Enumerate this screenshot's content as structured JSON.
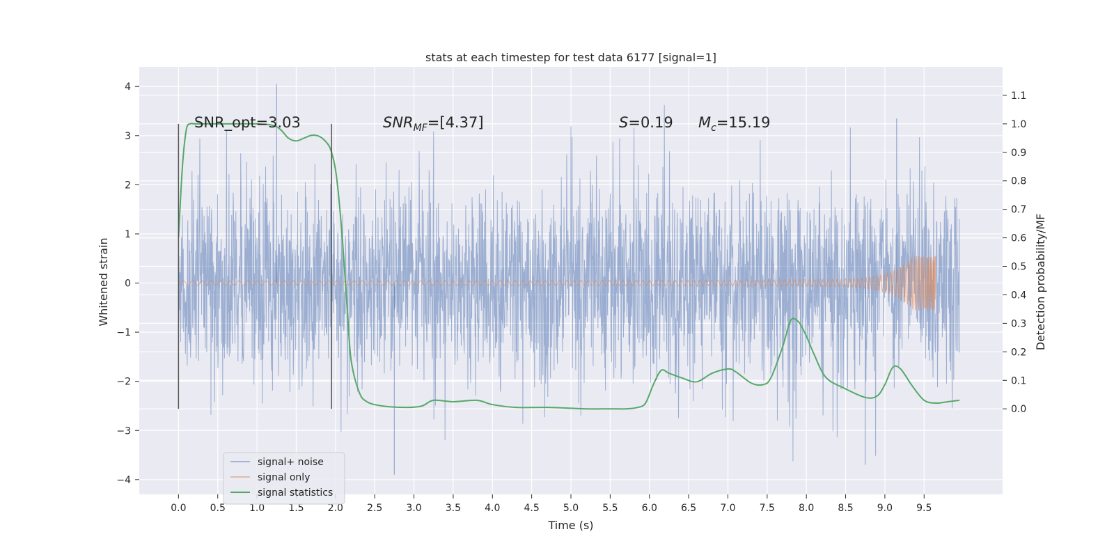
{
  "chart_data": {
    "type": "line",
    "title": "stats at each timestep for test data 6177 [signal=1]",
    "xlabel": "Time (s)",
    "ylabel": "Whitened strain",
    "ylabel_right": "Detection probability/MF",
    "xlim": [
      -0.5,
      10.5
    ],
    "ylim": [
      -4.3,
      4.4
    ],
    "ylim_right": [
      -0.3,
      1.2
    ],
    "x_ticks": [
      "0.0",
      "0.5",
      "1.0",
      "1.5",
      "2.0",
      "2.5",
      "3.0",
      "3.5",
      "4.0",
      "4.5",
      "5.0",
      "5.5",
      "6.0",
      "6.5",
      "7.0",
      "7.5",
      "8.0",
      "8.5",
      "9.0",
      "9.5"
    ],
    "y_ticks": [
      "4",
      "3",
      "2",
      "1",
      "0",
      "−1",
      "−2",
      "−3",
      "−4"
    ],
    "y_ticks_right": [
      "1.1",
      "1.0",
      "0.9",
      "0.8",
      "0.7",
      "0.6",
      "0.5",
      "0.4",
      "0.3",
      "0.2",
      "0.1",
      "0.0"
    ],
    "grid": true,
    "legend_position": "lower-left",
    "annotations": [
      {
        "key": "snr_opt",
        "text": "SNR_opt=3.03"
      },
      {
        "key": "snr_mf",
        "text": "SNR",
        "sub": "MF",
        "suffix": "=[4.37]"
      },
      {
        "key": "s",
        "text": "S",
        "suffix": "=0.19"
      },
      {
        "key": "mc",
        "text": "M",
        "sub": "c",
        "suffix": "=15.19"
      }
    ],
    "vertical_markers": [
      0.0,
      1.95
    ],
    "series": [
      {
        "name": "signal+ noise",
        "color": "#4c72b0",
        "x_range": [
          0.0,
          9.95
        ],
        "noise_sigma": 1.0,
        "peak_max": 4.05,
        "peak_min": -3.9
      },
      {
        "name": "signal only",
        "color": "#dd8452",
        "x_range": [
          0.0,
          9.65
        ],
        "chirp_peak_amplitude": 0.55,
        "merger_time": 9.65
      },
      {
        "name": "signal statistics",
        "color": "#55a868",
        "axis": "right",
        "x": [
          0.0,
          0.05,
          0.1,
          0.15,
          0.2,
          0.3,
          0.5,
          0.8,
          1.0,
          1.2,
          1.3,
          1.4,
          1.5,
          1.6,
          1.7,
          1.8,
          1.9,
          1.95,
          2.0,
          2.05,
          2.1,
          2.15,
          2.2,
          2.3,
          2.4,
          2.6,
          2.9,
          3.1,
          3.25,
          3.5,
          3.8,
          4.0,
          4.3,
          4.7,
          5.2,
          5.5,
          5.7,
          5.85,
          5.95,
          6.05,
          6.15,
          6.25,
          6.4,
          6.6,
          6.8,
          7.0,
          7.1,
          7.3,
          7.45,
          7.55,
          7.7,
          7.8,
          7.9,
          8.0,
          8.1,
          8.25,
          8.5,
          8.75,
          8.9,
          9.0,
          9.1,
          9.2,
          9.35,
          9.5,
          9.65,
          9.8,
          9.95
        ],
        "y": [
          0.6,
          0.85,
          0.98,
          1.0,
          1.0,
          1.0,
          1.0,
          1.0,
          1.0,
          0.995,
          0.98,
          0.95,
          0.94,
          0.95,
          0.96,
          0.955,
          0.93,
          0.9,
          0.84,
          0.72,
          0.55,
          0.35,
          0.17,
          0.06,
          0.025,
          0.01,
          0.005,
          0.01,
          0.03,
          0.025,
          0.03,
          0.015,
          0.005,
          0.005,
          0.0,
          0.0,
          0.0,
          0.005,
          0.02,
          0.085,
          0.135,
          0.125,
          0.11,
          0.095,
          0.125,
          0.14,
          0.13,
          0.09,
          0.085,
          0.11,
          0.22,
          0.31,
          0.305,
          0.255,
          0.19,
          0.11,
          0.07,
          0.04,
          0.045,
          0.085,
          0.145,
          0.14,
          0.08,
          0.03,
          0.02,
          0.025,
          0.03
        ]
      }
    ]
  }
}
